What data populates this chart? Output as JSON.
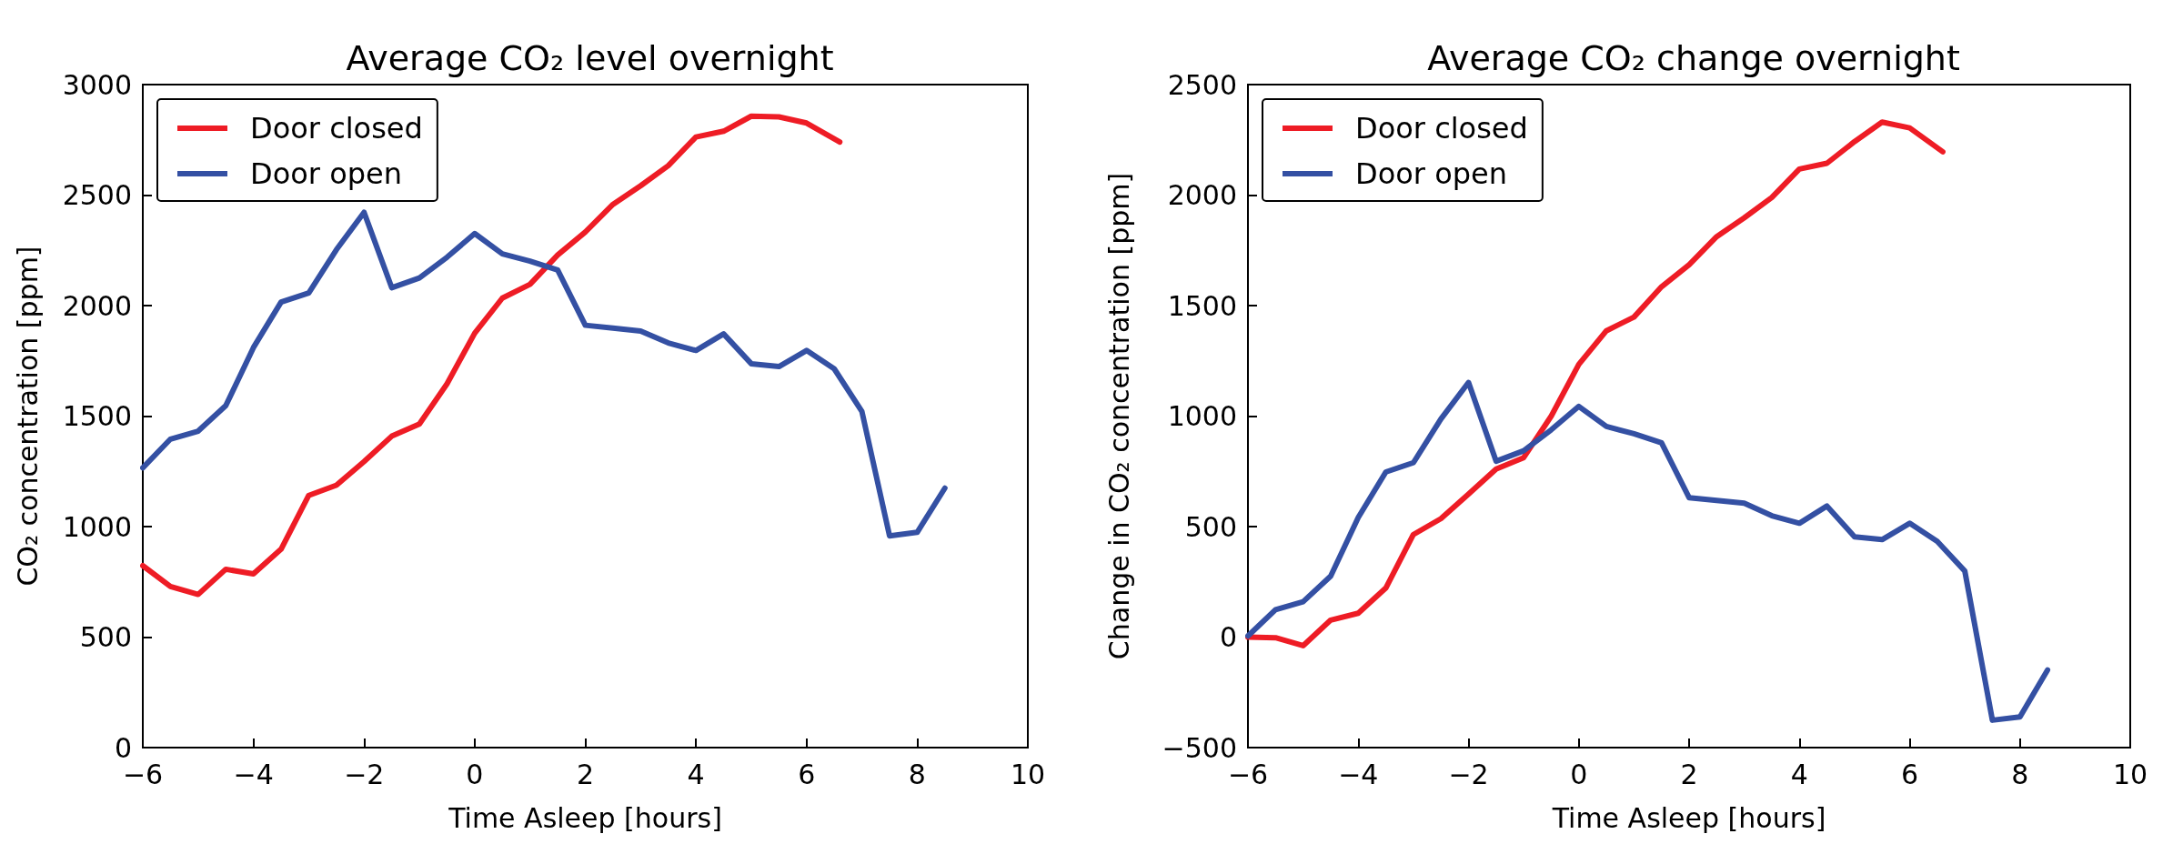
{
  "chart_data": [
    {
      "type": "line",
      "title": "Average CO₂ level overnight",
      "xlabel": "Time Asleep [hours]",
      "ylabel": "CO₂ concentration [ppm]",
      "xlim": [
        -6,
        10
      ],
      "xticks": [
        -6,
        -4,
        -2,
        0,
        2,
        4,
        6,
        8,
        10
      ],
      "ylim": [
        0,
        3000
      ],
      "yticks": [
        0,
        500,
        1000,
        1500,
        2000,
        2500,
        3000
      ],
      "legend": "top left",
      "grid": false,
      "marker": "none",
      "series": [
        {
          "name": "Door closed",
          "color": "#ee1c25",
          "x": [
            -6,
            -5.5,
            -5,
            -4.5,
            -4,
            -3.5,
            -3,
            -2.5,
            -2,
            -1.5,
            -1,
            -0.5,
            0,
            0.5,
            1,
            1.5,
            2,
            2.5,
            3,
            3.5,
            4,
            4.5,
            5,
            5.5,
            6,
            6.6
          ],
          "values": [
            823,
            729,
            693,
            807,
            786,
            898,
            1141,
            1187,
            1294,
            1409,
            1464,
            1646,
            1875,
            2034,
            2096,
            2229,
            2333,
            2458,
            2542,
            2633,
            2763,
            2789,
            2857,
            2854,
            2826,
            2740
          ]
        },
        {
          "name": "Door open",
          "color": "#3450a3",
          "x": [
            -6,
            -5.5,
            -5,
            -4.5,
            -4,
            -3.5,
            -3,
            -2.5,
            -2,
            -1.5,
            -1,
            -0.5,
            0,
            0.5,
            1,
            1.5,
            2,
            2.5,
            3,
            3.5,
            4,
            4.5,
            5,
            5.5,
            6,
            6.5,
            7,
            7.5,
            8,
            8.5
          ],
          "values": [
            1266,
            1396,
            1432,
            1547,
            1810,
            2016,
            2057,
            2253,
            2422,
            2081,
            2125,
            2219,
            2326,
            2234,
            2201,
            2161,
            1911,
            1898,
            1885,
            1831,
            1797,
            1872,
            1737,
            1724,
            1797,
            1714,
            1521,
            958,
            974,
            1174
          ]
        }
      ]
    },
    {
      "type": "line",
      "title": "Average CO₂ change overnight",
      "xlabel": "Time Asleep [hours]",
      "ylabel": "Change in CO₂ concentration [ppm]",
      "xlim": [
        -6,
        10
      ],
      "xticks": [
        -6,
        -4,
        -2,
        0,
        2,
        4,
        6,
        8,
        10
      ],
      "ylim": [
        -500,
        2500
      ],
      "yticks": [
        -500,
        0,
        500,
        1000,
        1500,
        2000,
        2500
      ],
      "legend": "top left",
      "grid": false,
      "marker": "none",
      "series": [
        {
          "name": "Door closed",
          "color": "#ee1c25",
          "x": [
            -6,
            -5.5,
            -5,
            -4.5,
            -4,
            -3.5,
            -3,
            -2.5,
            -2,
            -1.5,
            -1,
            -0.5,
            0,
            0.5,
            1,
            1.5,
            2,
            2.5,
            3,
            3.5,
            4,
            4.5,
            5,
            5.5,
            6,
            6.6
          ],
          "values": [
            0,
            -3,
            -39,
            77,
            108,
            222,
            464,
            536,
            647,
            760,
            812,
            1000,
            1234,
            1386,
            1448,
            1585,
            1685,
            1812,
            1897,
            1989,
            2118,
            2144,
            2242,
            2330,
            2304,
            2196
          ]
        },
        {
          "name": "Door open",
          "color": "#3450a3",
          "x": [
            -6,
            -5.5,
            -5,
            -4.5,
            -4,
            -3.5,
            -3,
            -2.5,
            -2,
            -1.5,
            -1,
            -0.5,
            0,
            0.5,
            1,
            1.5,
            2,
            2.5,
            3,
            3.5,
            4,
            4.5,
            5,
            5.5,
            6,
            6.5,
            7,
            7.5,
            8,
            8.5
          ],
          "values": [
            5,
            124,
            160,
            276,
            541,
            747,
            789,
            987,
            1152,
            796,
            843,
            938,
            1044,
            953,
            920,
            879,
            631,
            618,
            606,
            549,
            515,
            593,
            454,
            441,
            515,
            433,
            299,
            -376,
            -361,
            -149
          ]
        }
      ]
    }
  ]
}
